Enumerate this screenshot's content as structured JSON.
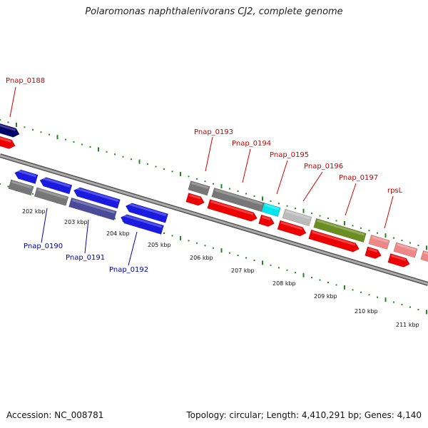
{
  "title": "Polaromonas naphthalenivorans CJ2, complete genome",
  "footer": {
    "accession": "Accession: NC_008781",
    "topology": "Topology: circular; Length: 4,410,291 bp; Genes: 4,140"
  },
  "colors": {
    "backbone": "#888888",
    "tick": "#228822",
    "label_top": "#cc0000",
    "label_bottom": "#0000aa"
  },
  "kbp_labels": [
    "202 kbp",
    "203 kbp",
    "204 kbp",
    "205 kbp",
    "206 kbp",
    "207 kbp",
    "208 kbp",
    "209 kbp",
    "210 kbp",
    "211 kbp"
  ],
  "gene_labels": [
    {
      "text": "Pnap_0188",
      "side": "top"
    },
    {
      "text": "Pnap_0190",
      "side": "bottom"
    },
    {
      "text": "Pnap_0191",
      "side": "bottom"
    },
    {
      "text": "Pnap_0192",
      "side": "bottom"
    },
    {
      "text": "Pnap_0193",
      "side": "top"
    },
    {
      "text": "Pnap_0194",
      "side": "top"
    },
    {
      "text": "Pnap_0195",
      "side": "top"
    },
    {
      "text": "Pnap_0196",
      "side": "top"
    },
    {
      "text": "Pnap_0197",
      "side": "top"
    },
    {
      "text": "rpsL",
      "side": "top"
    }
  ],
  "features": [
    {
      "track": "o2",
      "color": "#000066",
      "dir": "fwd"
    },
    {
      "track": "o1",
      "color": "#ee0000",
      "dir": "fwd"
    },
    {
      "track": "i1",
      "color": "#1a1ae0",
      "dir": "rev"
    },
    {
      "track": "i1",
      "color": "#1a1ae0",
      "dir": "rev"
    },
    {
      "track": "i1",
      "color": "#1a1ae0",
      "dir": "rev"
    },
    {
      "track": "i1",
      "color": "#1a1ae0",
      "dir": "rev"
    },
    {
      "track": "i2",
      "color": "#777777",
      "dir": "none"
    },
    {
      "track": "i2",
      "color": "#777777",
      "dir": "none"
    },
    {
      "track": "i2",
      "color": "#4a4a99",
      "dir": "none"
    },
    {
      "track": "i2",
      "color": "#1a1ae0",
      "dir": "rev"
    },
    {
      "track": "o2",
      "color": "#777777",
      "dir": "none"
    },
    {
      "track": "o2",
      "color": "#777777",
      "dir": "none"
    },
    {
      "track": "o2",
      "color": "#00e5ee",
      "dir": "none"
    },
    {
      "track": "o2",
      "color": "#bbbbbb",
      "dir": "none"
    },
    {
      "track": "o2",
      "color": "#6b8e23",
      "dir": "none"
    },
    {
      "track": "o2",
      "color": "#ee8888",
      "dir": "none"
    },
    {
      "track": "o2",
      "color": "#ee8888",
      "dir": "none"
    },
    {
      "track": "o2",
      "color": "#ee8888",
      "dir": "none"
    },
    {
      "track": "o1",
      "color": "#ee0000",
      "dir": "fwd"
    },
    {
      "track": "o1",
      "color": "#ee0000",
      "dir": "fwd"
    },
    {
      "track": "o1",
      "color": "#ee0000",
      "dir": "fwd"
    },
    {
      "track": "o1",
      "color": "#ee0000",
      "dir": "fwd"
    },
    {
      "track": "o1",
      "color": "#ee0000",
      "dir": "fwd"
    },
    {
      "track": "o1",
      "color": "#ee0000",
      "dir": "fwd"
    },
    {
      "track": "o1",
      "color": "#ee0000",
      "dir": "fwd"
    }
  ]
}
